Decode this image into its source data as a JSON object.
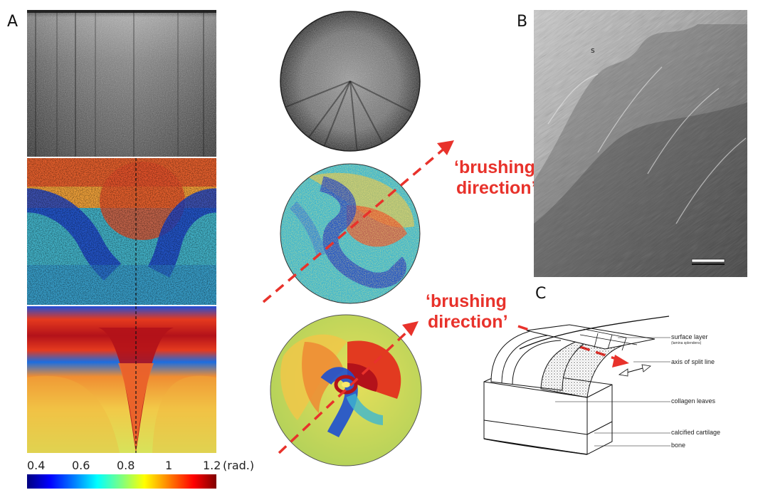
{
  "panels": {
    "a": {
      "letter": "A"
    },
    "b": {
      "letter": "B",
      "sem_marker": "s"
    },
    "c": {
      "letter": "C"
    }
  },
  "annotations": {
    "brushing_upper": {
      "line1": "‘brushing",
      "line2": "direction’"
    },
    "brushing_lower": {
      "line1": "‘brushing",
      "line2": "direction’"
    }
  },
  "colorbar": {
    "ticks": [
      "0.4",
      "0.6",
      "0.8",
      "1",
      "1.2"
    ],
    "unit": "(rad.)"
  },
  "diagram_labels": {
    "surface_layer": "surface layer",
    "surface_layer_sub": "(lamina splendens)",
    "axis_split": "axis of split line",
    "collagen": "collagen leaves",
    "calcified": "calcified cartilage",
    "bone": "bone"
  },
  "colors": {
    "arrow_red": "#e8322b",
    "jet": [
      "#00007f",
      "#0000ff",
      "#007fff",
      "#00ffff",
      "#7fff7f",
      "#ffff00",
      "#ff7f00",
      "#ff0000",
      "#7f0000"
    ]
  }
}
